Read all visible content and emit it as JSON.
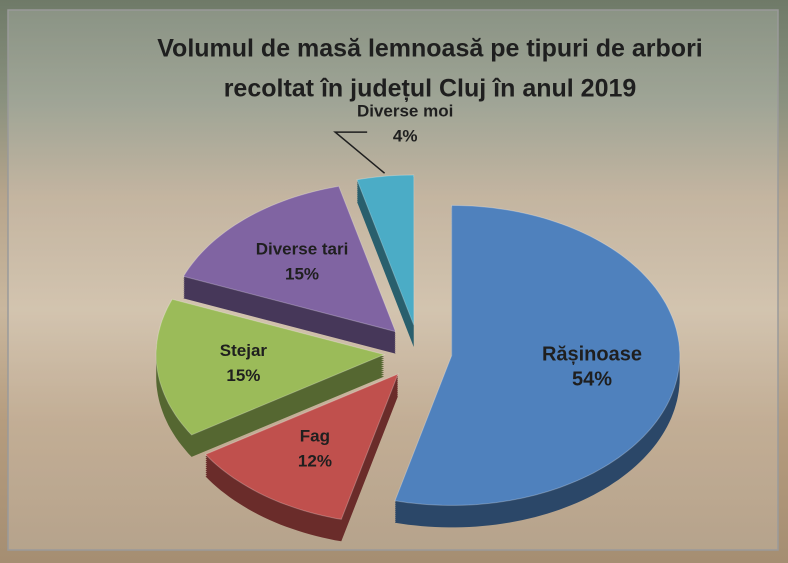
{
  "chart_data": {
    "type": "pie3d",
    "title": [
      "Volumul de masă lemnoasă pe tipuri de arbori",
      "recoltat în județul Cluj în anul 2019"
    ],
    "categories": [
      "Rășinoase",
      "Fag",
      "Stejar",
      "Diverse tari",
      "Diverse moi"
    ],
    "values": [
      54,
      12,
      15,
      15,
      4
    ],
    "value_labels": [
      "54%",
      "12%",
      "15%",
      "15%",
      "4%"
    ],
    "colors": [
      "#4f81bd",
      "#c0504d",
      "#9bbb59",
      "#8064a2",
      "#4bacc6"
    ],
    "exploded": true
  }
}
